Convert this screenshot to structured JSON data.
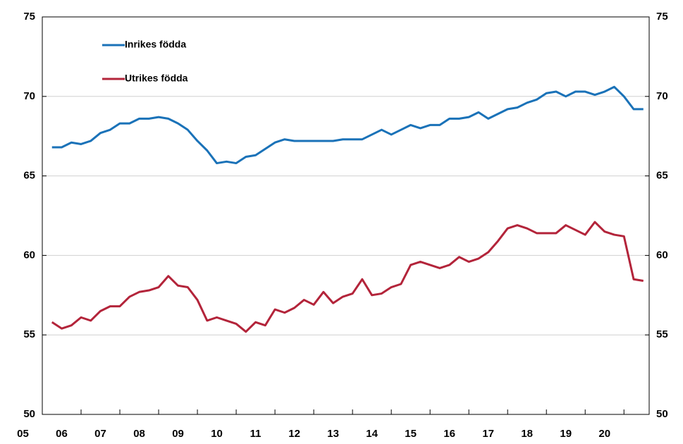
{
  "chart_data": {
    "type": "line",
    "x": [
      2005.25,
      2005.5,
      2005.75,
      2006,
      2006.25,
      2006.5,
      2006.75,
      2007,
      2007.25,
      2007.5,
      2007.75,
      2008,
      2008.25,
      2008.5,
      2008.75,
      2009,
      2009.25,
      2009.5,
      2009.75,
      2010,
      2010.25,
      2010.5,
      2010.75,
      2011,
      2011.25,
      2011.5,
      2011.75,
      2012,
      2012.25,
      2012.5,
      2012.75,
      2013,
      2013.25,
      2013.5,
      2013.75,
      2014,
      2014.25,
      2014.5,
      2014.75,
      2015,
      2015.25,
      2015.5,
      2015.75,
      2016,
      2016.25,
      2016.5,
      2016.75,
      2017,
      2017.25,
      2017.5,
      2017.75,
      2018,
      2018.25,
      2018.5,
      2018.75,
      2019,
      2019.25,
      2019.5,
      2019.75,
      2020,
      2020.25,
      2020.5
    ],
    "series": [
      {
        "name": "Inrikes födda",
        "color": "#1a72b8",
        "values": [
          66.8,
          66.8,
          67.1,
          67.0,
          67.2,
          67.7,
          67.9,
          68.3,
          68.3,
          68.6,
          68.6,
          68.7,
          68.6,
          68.3,
          67.9,
          67.2,
          66.6,
          65.8,
          65.9,
          65.8,
          66.2,
          66.3,
          66.7,
          67.1,
          67.3,
          67.2,
          67.2,
          67.2,
          67.2,
          67.2,
          67.3,
          67.3,
          67.3,
          67.6,
          67.9,
          67.6,
          67.9,
          68.2,
          68.0,
          68.2,
          68.2,
          68.6,
          68.6,
          68.7,
          69.0,
          68.6,
          68.9,
          69.2,
          69.3,
          69.6,
          69.8,
          70.2,
          70.3,
          70.0,
          70.3,
          70.3,
          70.1,
          70.3,
          70.6,
          70.0,
          69.2,
          69.2
        ]
      },
      {
        "name": "Utrikes födda",
        "color": "#b3243a",
        "values": [
          55.8,
          55.4,
          55.6,
          56.1,
          55.9,
          56.5,
          56.8,
          56.8,
          57.4,
          57.7,
          57.8,
          58.0,
          58.7,
          58.1,
          58.0,
          57.2,
          55.9,
          56.1,
          55.9,
          55.7,
          55.2,
          55.8,
          55.6,
          56.6,
          56.4,
          56.7,
          57.2,
          56.9,
          57.7,
          57.0,
          57.4,
          57.6,
          58.5,
          57.5,
          57.6,
          58.0,
          58.2,
          59.4,
          59.6,
          59.4,
          59.2,
          59.4,
          59.9,
          59.6,
          59.8,
          60.2,
          60.9,
          61.7,
          61.9,
          61.7,
          61.4,
          61.4,
          61.4,
          61.9,
          61.6,
          61.3,
          62.1,
          61.5,
          61.3,
          61.2,
          58.5,
          58.4
        ]
      }
    ],
    "xlim": [
      2005,
      2020.65
    ],
    "xticks": [
      {
        "value": 2005,
        "label": "05"
      },
      {
        "value": 2006,
        "label": "06"
      },
      {
        "value": 2007,
        "label": "07"
      },
      {
        "value": 2008,
        "label": "08"
      },
      {
        "value": 2009,
        "label": "09"
      },
      {
        "value": 2010,
        "label": "10"
      },
      {
        "value": 2011,
        "label": "11"
      },
      {
        "value": 2012,
        "label": "12"
      },
      {
        "value": 2013,
        "label": "13"
      },
      {
        "value": 2014,
        "label": "14"
      },
      {
        "value": 2015,
        "label": "15"
      },
      {
        "value": 2016,
        "label": "16"
      },
      {
        "value": 2017,
        "label": "17"
      },
      {
        "value": 2018,
        "label": "18"
      },
      {
        "value": 2019,
        "label": "19"
      },
      {
        "value": 2020,
        "label": "20"
      }
    ],
    "ylim": [
      50,
      75
    ],
    "yticks": [
      50,
      55,
      60,
      65,
      70,
      75
    ],
    "grid": true,
    "legend": "upper-left"
  }
}
